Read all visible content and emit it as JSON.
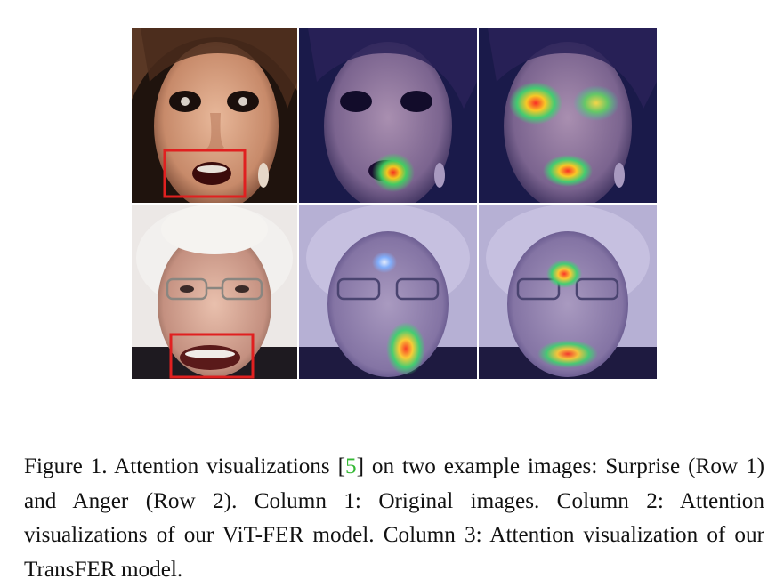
{
  "figure": {
    "rows": [
      {
        "label": "Surprise (Row 1)"
      },
      {
        "label": "Anger (Row 2)"
      }
    ],
    "columns": [
      {
        "label": "Column 1: Original images"
      },
      {
        "label": "Column 2: Attention visualizations of our ViT-FER model"
      },
      {
        "label": "Column 3: Attention visualization of our TransFER model"
      }
    ],
    "highlight_color": "#e02020",
    "heatmap_overlay_color": "#1a1a7a"
  },
  "caption": {
    "prefix": "Figure 1. Attention visualizations [",
    "citation": "5",
    "suffix": "] on two example images: Surprise (Row 1) and Anger (Row 2). Column 1: Original images. Column 2: Attention visualizations of our ViT-FER model. Column 3: Attention visualization of our TransFER model.",
    "citation_color": "#35b835"
  }
}
